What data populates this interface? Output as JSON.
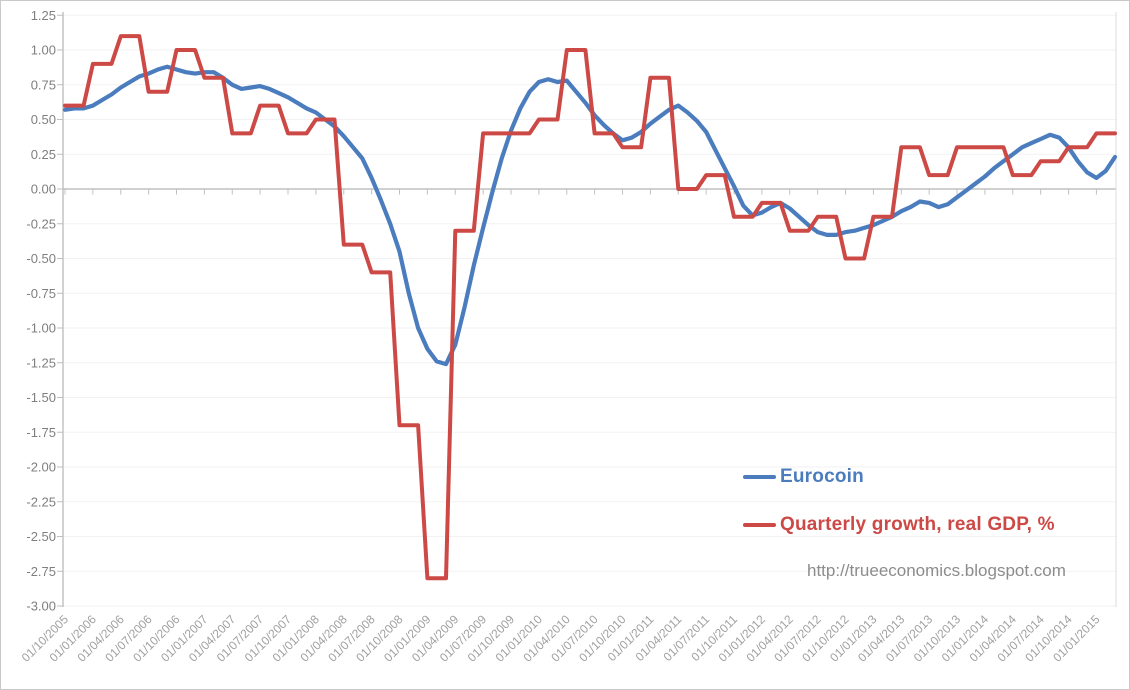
{
  "watermark": "http://trueeconomics.blogspot.com",
  "chart_data": {
    "type": "line",
    "title": "",
    "grid": "faint-horizontal",
    "legend_position": "inside-right",
    "x_axis": {
      "tick_labels": [
        "01/10/2005",
        "01/01/2006",
        "01/04/2006",
        "01/07/2006",
        "01/10/2006",
        "01/01/2007",
        "01/04/2007",
        "01/07/2007",
        "01/10/2007",
        "01/01/2008",
        "01/04/2008",
        "01/07/2008",
        "01/10/2008",
        "01/01/2009",
        "01/04/2009",
        "01/07/2009",
        "01/10/2009",
        "01/01/2010",
        "01/04/2010",
        "01/07/2010",
        "01/10/2010",
        "01/01/2011",
        "01/04/2011",
        "01/07/2011",
        "01/10/2011",
        "01/01/2012",
        "01/04/2012",
        "01/07/2012",
        "01/10/2012",
        "01/01/2013",
        "01/04/2013",
        "01/07/2013",
        "01/10/2013",
        "01/01/2014",
        "01/04/2014",
        "01/07/2014",
        "01/10/2014",
        "01/01/2015"
      ],
      "months_per_tick": 3
    },
    "y_axis": {
      "tick_labels": [
        "1.25",
        "1.00",
        "0.75",
        "0.50",
        "0.25",
        "0.00",
        "-0.25",
        "-0.50",
        "-0.75",
        "-1.00",
        "-1.25",
        "-1.50",
        "-1.75",
        "-2.00",
        "-2.25",
        "-2.50",
        "-2.75",
        "-3.00"
      ],
      "max": 1.25,
      "min": -3.0,
      "step": 0.25
    },
    "series": [
      {
        "name": "Eurocoin",
        "color": "#4a7cbe",
        "frequency": "monthly",
        "values": [
          0.57,
          0.58,
          0.58,
          0.6,
          0.64,
          0.68,
          0.73,
          0.77,
          0.81,
          0.83,
          0.86,
          0.88,
          0.86,
          0.84,
          0.83,
          0.84,
          0.84,
          0.8,
          0.75,
          0.72,
          0.73,
          0.74,
          0.72,
          0.69,
          0.66,
          0.62,
          0.58,
          0.55,
          0.5,
          0.45,
          0.38,
          0.3,
          0.22,
          0.08,
          -0.08,
          -0.25,
          -0.45,
          -0.75,
          -1.0,
          -1.15,
          -1.24,
          -1.26,
          -1.12,
          -0.85,
          -0.55,
          -0.28,
          -0.02,
          0.22,
          0.42,
          0.58,
          0.7,
          0.77,
          0.79,
          0.77,
          0.78,
          0.7,
          0.62,
          0.53,
          0.46,
          0.4,
          0.35,
          0.37,
          0.41,
          0.47,
          0.52,
          0.57,
          0.6,
          0.55,
          0.49,
          0.41,
          0.28,
          0.15,
          0.02,
          -0.12,
          -0.19,
          -0.17,
          -0.13,
          -0.1,
          -0.14,
          -0.2,
          -0.26,
          -0.31,
          -0.33,
          -0.33,
          -0.31,
          -0.3,
          -0.28,
          -0.26,
          -0.23,
          -0.2,
          -0.16,
          -0.13,
          -0.09,
          -0.1,
          -0.13,
          -0.11,
          -0.06,
          -0.01,
          0.04,
          0.09,
          0.15,
          0.2,
          0.25,
          0.3,
          0.33,
          0.36,
          0.39,
          0.37,
          0.3,
          0.2,
          0.12,
          0.08,
          0.13,
          0.23
        ]
      },
      {
        "name": "Quarterly growth, real GDP, %",
        "color": "#cc4946",
        "frequency": "quarterly",
        "months_per_value": 3,
        "values": [
          0.6,
          0.9,
          1.1,
          0.7,
          1.0,
          0.8,
          0.4,
          0.6,
          0.4,
          0.5,
          -0.4,
          -0.6,
          -1.7,
          -2.8,
          -0.3,
          0.4,
          0.4,
          0.5,
          1.0,
          0.4,
          0.3,
          0.8,
          0.0,
          0.1,
          -0.2,
          -0.1,
          -0.3,
          -0.2,
          -0.5,
          -0.2,
          0.3,
          0.1,
          0.3,
          0.3,
          0.1,
          0.2,
          0.3,
          0.4
        ]
      }
    ]
  },
  "colors": {
    "y_axis_line": "#bfbfbf",
    "zero_line": "#c0c0c0",
    "gridline": "#f2f2f2",
    "right_border": "#dcdcdc",
    "y_label": "#7f7f7f",
    "x_label": "#a0a0a0"
  }
}
